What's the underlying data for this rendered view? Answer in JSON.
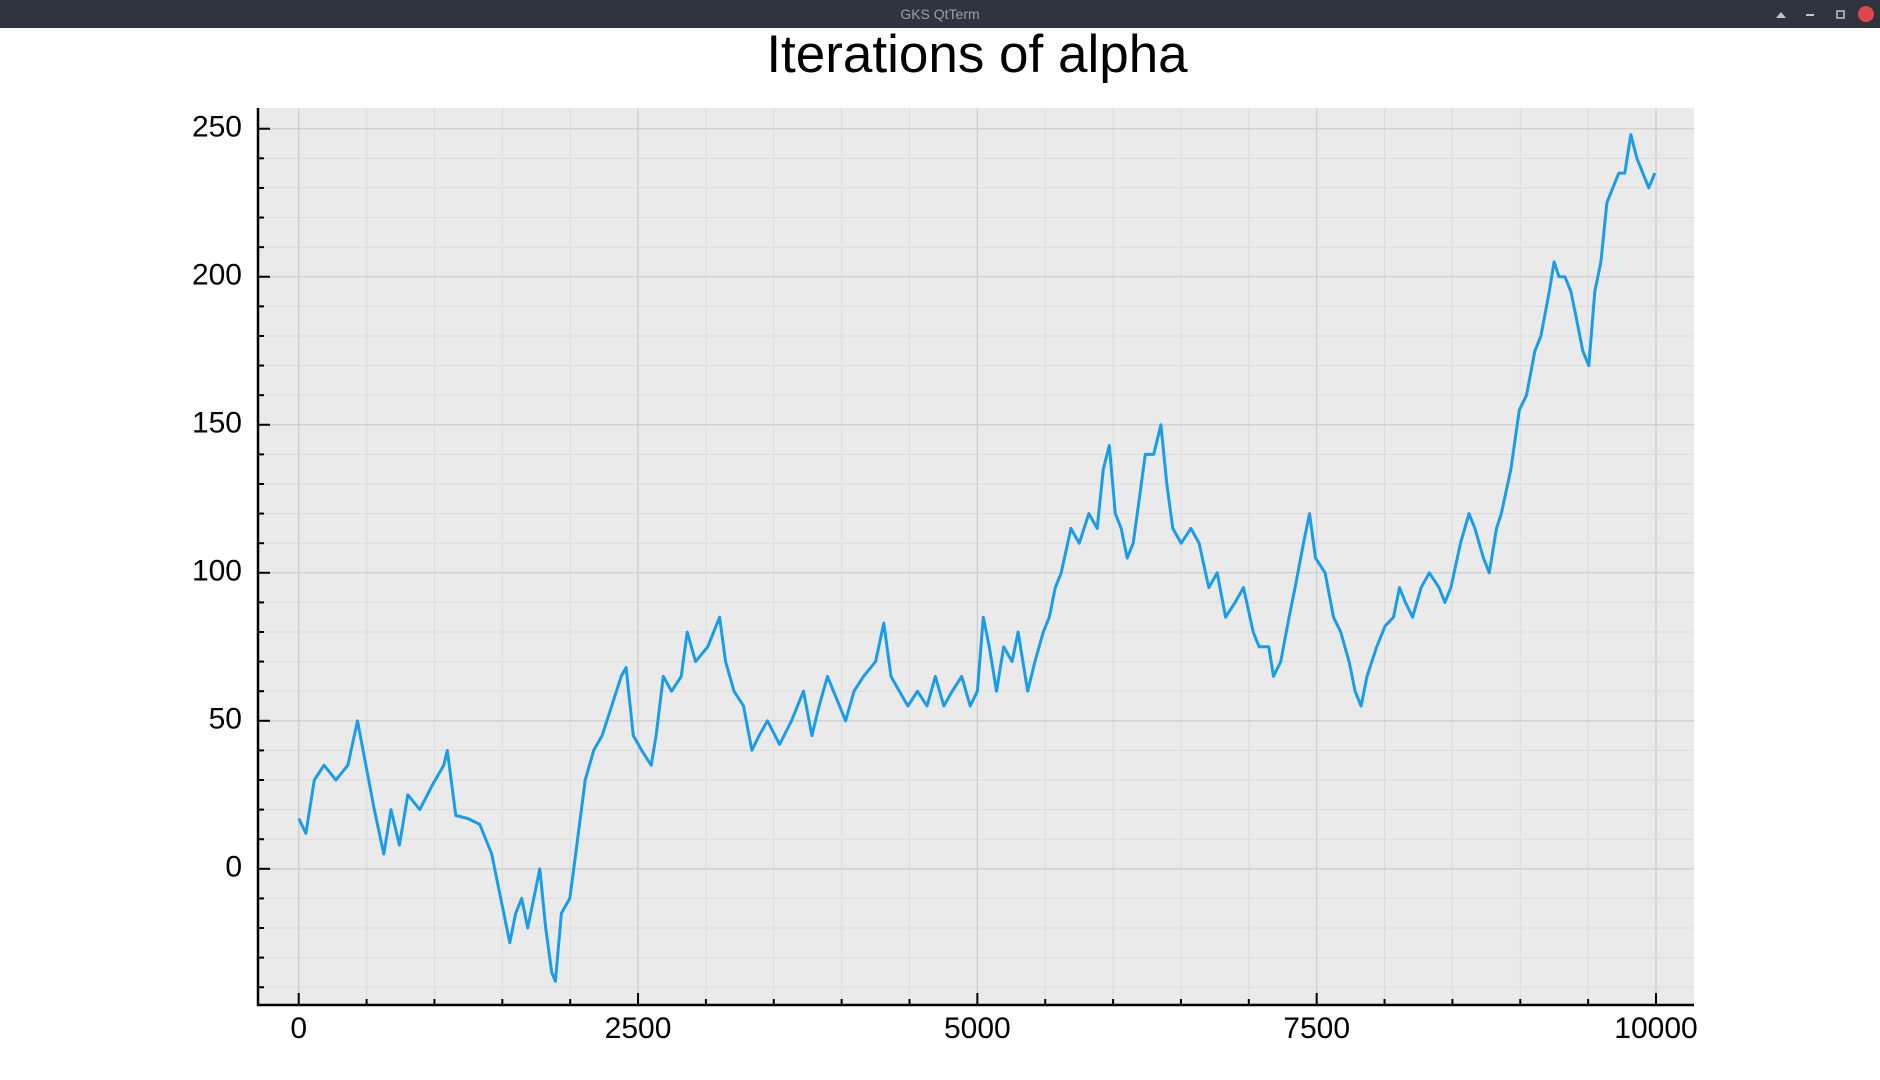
{
  "window": {
    "title": "GKS QtTerm"
  },
  "chart_data": {
    "type": "line",
    "title": "Iterations of alpha",
    "x": [
      0,
      53,
      115,
      186,
      274,
      362,
      433,
      495,
      557,
      627,
      680,
      742,
      804,
      892,
      981,
      1069,
      1095,
      1157,
      1246,
      1334,
      1422,
      1466,
      1511,
      1555,
      1599,
      1643,
      1687,
      1776,
      1820,
      1864,
      1891,
      1935,
      1997,
      2041,
      2111,
      2173,
      2235,
      2306,
      2376,
      2412,
      2465,
      2527,
      2597,
      2633,
      2686,
      2747,
      2818,
      2862,
      2924,
      3013,
      3101,
      3145,
      3207,
      3277,
      3339,
      3392,
      3454,
      3543,
      3631,
      3719,
      3781,
      3834,
      3896,
      3940,
      4029,
      4091,
      4161,
      4250,
      4311,
      4364,
      4426,
      4488,
      4559,
      4629,
      4691,
      4753,
      4815,
      4885,
      4947,
      5000,
      5044,
      5088,
      5141,
      5194,
      5256,
      5300,
      5371,
      5424,
      5486,
      5530,
      5574,
      5618,
      5689,
      5751,
      5821,
      5883,
      5928,
      5972,
      6016,
      6060,
      6104,
      6148,
      6193,
      6237,
      6299,
      6352,
      6396,
      6440,
      6502,
      6573,
      6634,
      6705,
      6767,
      6829,
      6899,
      6961,
      7032,
      7076,
      7147,
      7182,
      7235,
      7297,
      7341,
      7403,
      7447,
      7491,
      7562,
      7624,
      7677,
      7739,
      7783,
      7827,
      7871,
      7942,
      8004,
      8066,
      8110,
      8154,
      8207,
      8269,
      8330,
      8401,
      8445,
      8489,
      8560,
      8622,
      8666,
      8728,
      8772,
      8825,
      8860,
      8931,
      8993,
      9046,
      9108,
      9152,
      9214,
      9249,
      9285,
      9329,
      9373,
      9417,
      9461,
      9505,
      9549,
      9594,
      9638,
      9682,
      9726,
      9770,
      9814,
      9859,
      9903,
      9947,
      9991
    ],
    "values": [
      17,
      12,
      30,
      35,
      30,
      35,
      50,
      35,
      20,
      5,
      20,
      8,
      25,
      20,
      28,
      35,
      40,
      18,
      17,
      15,
      5,
      -5,
      -15,
      -25,
      -15,
      -10,
      -20,
      0,
      -20,
      -35,
      -38,
      -15,
      -10,
      5,
      30,
      40,
      45,
      55,
      65,
      68,
      45,
      40,
      35,
      45,
      65,
      60,
      65,
      80,
      70,
      75,
      85,
      70,
      60,
      55,
      40,
      45,
      50,
      42,
      50,
      60,
      45,
      55,
      65,
      60,
      50,
      60,
      65,
      70,
      83,
      65,
      60,
      55,
      60,
      55,
      65,
      55,
      60,
      65,
      55,
      60,
      85,
      75,
      60,
      75,
      70,
      80,
      60,
      70,
      80,
      85,
      95,
      100,
      115,
      110,
      120,
      115,
      135,
      143,
      120,
      115,
      105,
      110,
      125,
      140,
      140,
      150,
      130,
      115,
      110,
      115,
      110,
      95,
      100,
      85,
      90,
      95,
      80,
      75,
      75,
      65,
      70,
      85,
      95,
      110,
      120,
      105,
      100,
      85,
      80,
      70,
      60,
      55,
      65,
      75,
      82,
      85,
      95,
      90,
      85,
      95,
      100,
      95,
      90,
      95,
      110,
      120,
      115,
      105,
      100,
      115,
      120,
      135,
      155,
      160,
      175,
      180,
      195,
      205,
      200,
      200,
      195,
      185,
      175,
      170,
      195,
      205,
      225,
      230,
      235,
      235,
      248,
      240,
      235,
      230,
      235
    ],
    "color": "#1a9de8",
    "xlim": [
      -300,
      10280
    ],
    "ylim": [
      -46,
      257
    ],
    "xticks": [
      0,
      2500,
      5000,
      7500,
      10000
    ],
    "yticks": [
      0,
      50,
      100,
      150,
      200,
      250
    ],
    "minor_divisions": 5,
    "grid": true
  }
}
